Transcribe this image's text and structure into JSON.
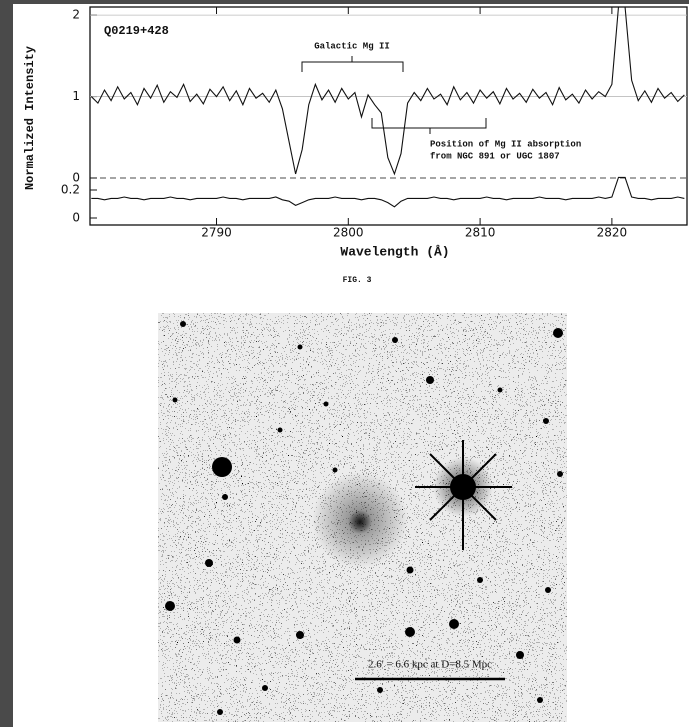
{
  "chart_data": {
    "type": "line",
    "title": "Q0219+428",
    "ylabel": "Normalized Intensity",
    "xlabel": "Wavelength (Å)",
    "annotations": [
      "Galactic Mg II",
      "Position of Mg II absorption",
      "from NGC 891 or UGC 1807"
    ],
    "x": [
      2780.5,
      2781,
      2781.5,
      2782,
      2782.5,
      2783,
      2783.5,
      2784,
      2784.5,
      2785,
      2785.5,
      2786,
      2786.5,
      2787,
      2787.5,
      2788,
      2788.5,
      2789,
      2789.5,
      2790,
      2790.5,
      2791,
      2791.5,
      2792,
      2792.5,
      2793,
      2793.5,
      2794,
      2794.5,
      2795,
      2795.5,
      2796,
      2796.5,
      2797,
      2797.5,
      2798,
      2798.5,
      2799,
      2799.5,
      2800,
      2800.5,
      2801,
      2801.5,
      2802,
      2802.5,
      2803,
      2803.5,
      2804,
      2804.5,
      2805,
      2805.5,
      2806,
      2806.5,
      2807,
      2807.5,
      2808,
      2808.5,
      2809,
      2809.5,
      2810,
      2810.5,
      2811,
      2811.5,
      2812,
      2812.5,
      2813,
      2813.5,
      2814,
      2814.5,
      2815,
      2815.5,
      2816,
      2816.5,
      2817,
      2817.5,
      2818,
      2818.5,
      2819,
      2819.5,
      2820,
      2820.5,
      2821,
      2821.5,
      2822,
      2822.5,
      2823,
      2823.5,
      2824,
      2824.5,
      2825,
      2825.5
    ],
    "series": [
      {
        "color": "#111111",
        "values": [
          1.0,
          0.92,
          1.08,
          0.95,
          1.12,
          0.97,
          1.05,
          0.9,
          1.1,
          0.98,
          1.14,
          0.93,
          1.06,
          0.99,
          1.15,
          0.94,
          1.03,
          0.91,
          1.09,
          1.0,
          1.12,
          0.95,
          1.07,
          0.9,
          1.1,
          0.98,
          1.04,
          0.93,
          1.08,
          0.85,
          0.45,
          0.05,
          0.35,
          0.9,
          1.15,
          0.96,
          1.08,
          0.93,
          1.1,
          0.97,
          1.05,
          0.75,
          1.02,
          0.9,
          0.8,
          0.25,
          0.05,
          0.3,
          0.92,
          1.05,
          0.95,
          1.1,
          0.97,
          1.03,
          0.9,
          1.12,
          0.96,
          1.05,
          0.92,
          1.08,
          0.98,
          1.06,
          0.91,
          1.1,
          0.97,
          1.04,
          0.93,
          1.09,
          0.98,
          1.05,
          0.9,
          1.11,
          0.96,
          1.03,
          0.92,
          1.08,
          0.97,
          1.06,
          1.0,
          1.15,
          2.1,
          2.1,
          1.2,
          0.95,
          1.07,
          0.93,
          1.1,
          0.98,
          1.05,
          0.94,
          1.02
        ]
      },
      {
        "color": "#111111",
        "axis": "y2",
        "values": [
          0.14,
          0.14,
          0.13,
          0.14,
          0.14,
          0.15,
          0.14,
          0.14,
          0.13,
          0.14,
          0.14,
          0.14,
          0.15,
          0.14,
          0.14,
          0.13,
          0.14,
          0.14,
          0.14,
          0.14,
          0.15,
          0.14,
          0.14,
          0.13,
          0.14,
          0.14,
          0.14,
          0.14,
          0.15,
          0.13,
          0.12,
          0.09,
          0.11,
          0.13,
          0.14,
          0.14,
          0.14,
          0.15,
          0.14,
          0.14,
          0.14,
          0.13,
          0.14,
          0.14,
          0.13,
          0.11,
          0.08,
          0.12,
          0.14,
          0.14,
          0.14,
          0.14,
          0.15,
          0.14,
          0.14,
          0.13,
          0.14,
          0.14,
          0.14,
          0.14,
          0.15,
          0.14,
          0.14,
          0.13,
          0.14,
          0.14,
          0.14,
          0.14,
          0.15,
          0.14,
          0.14,
          0.14,
          0.13,
          0.14,
          0.14,
          0.14,
          0.14,
          0.15,
          0.14,
          0.15,
          0.29,
          0.29,
          0.15,
          0.14,
          0.14,
          0.13,
          0.14,
          0.14,
          0.14,
          0.15,
          0.14
        ]
      }
    ],
    "xlim": [
      2780.4,
      2825.7
    ],
    "xticks": [
      2790,
      2800,
      2810,
      2820
    ],
    "ylim": [
      0,
      2.1
    ],
    "yticks": [
      0,
      1,
      2
    ],
    "y2lim": [
      -0.05,
      0.2
    ],
    "y2ticks": [
      0,
      0.2
    ]
  },
  "figure": {
    "caption": "FIG. 3",
    "scale_label": "2.6' = 6.6 kpc at D=8.5 Mpc"
  }
}
